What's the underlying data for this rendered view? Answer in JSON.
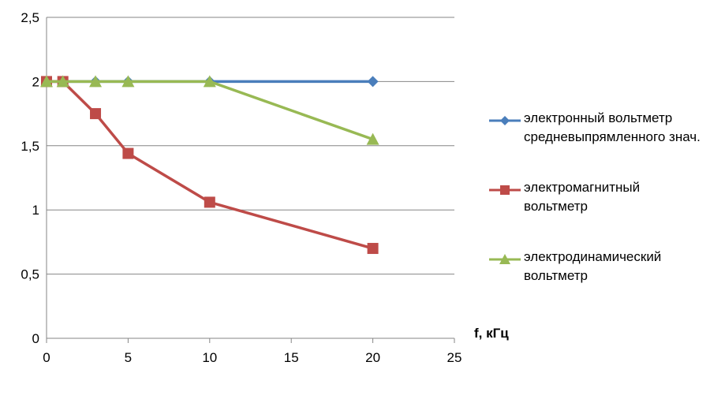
{
  "chart_data": {
    "type": "line",
    "xlabel": "f, кГц",
    "ylabel": "",
    "xlim": [
      0,
      25
    ],
    "ylim": [
      0,
      2.5
    ],
    "xticks": [
      "0",
      "5",
      "10",
      "15",
      "20",
      "25"
    ],
    "yticks": [
      "0",
      "0,5",
      "1",
      "1,5",
      "2",
      "2,5"
    ],
    "grid": "horizontal",
    "legend_position": "right",
    "series": [
      {
        "name": "электронный вольтметр средневыпрямленного знач.",
        "color": "#4A7EBB",
        "marker": "diamond",
        "x": [
          0,
          1,
          3,
          5,
          10,
          20
        ],
        "y": [
          2,
          2,
          2,
          2,
          2,
          2
        ]
      },
      {
        "name": "электромагнитный вольтметр",
        "color": "#BE4B48",
        "marker": "square",
        "x": [
          0,
          1,
          3,
          5,
          10,
          20
        ],
        "y": [
          2,
          2,
          1.75,
          1.44,
          1.06,
          0.7
        ]
      },
      {
        "name": "электродинамический вольтметр",
        "color": "#98B954",
        "marker": "triangle",
        "x": [
          0,
          1,
          3,
          5,
          10,
          20
        ],
        "y": [
          2,
          2,
          2,
          2,
          2,
          1.55
        ]
      }
    ]
  }
}
